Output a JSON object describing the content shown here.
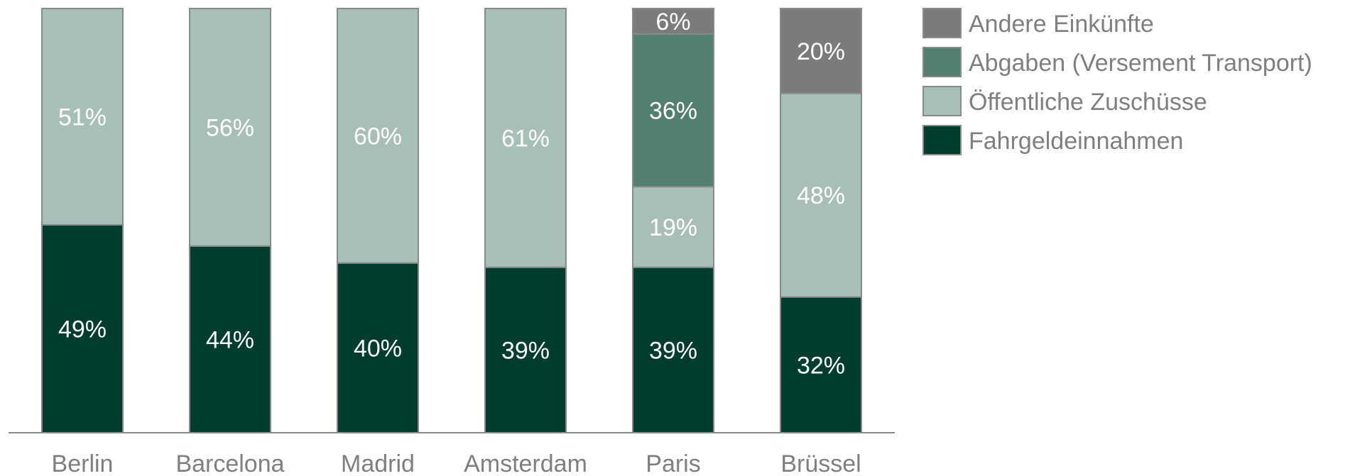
{
  "chart_data": {
    "type": "bar",
    "stacked": true,
    "unit": "%",
    "categories": [
      "Berlin",
      "Barcelona",
      "Madrid",
      "Amsterdam",
      "Paris",
      "Brüssel"
    ],
    "series": [
      {
        "name": "Fahrgeldeinnahmen",
        "color": "#003d2e",
        "values": [
          49,
          44,
          40,
          39,
          39,
          32
        ]
      },
      {
        "name": "Öffentliche Zuschüsse",
        "color": "#a8bfb9",
        "values": [
          51,
          56,
          60,
          61,
          19,
          48
        ]
      },
      {
        "name": "Abgaben (Versement Transport)",
        "color": "#527f6f",
        "values": [
          0,
          0,
          0,
          0,
          36,
          0
        ]
      },
      {
        "name": "Andere Einkünfte",
        "color": "#7b7b7b",
        "values": [
          0,
          0,
          0,
          0,
          6,
          20
        ]
      }
    ],
    "legend_order": [
      "Andere Einkünfte",
      "Abgaben (Versement Transport)",
      "Öffentliche Zuschüsse",
      "Fahrgeldeinnahmen"
    ],
    "legend_position": "right",
    "ylim": [
      0,
      100
    ],
    "grid": false
  }
}
